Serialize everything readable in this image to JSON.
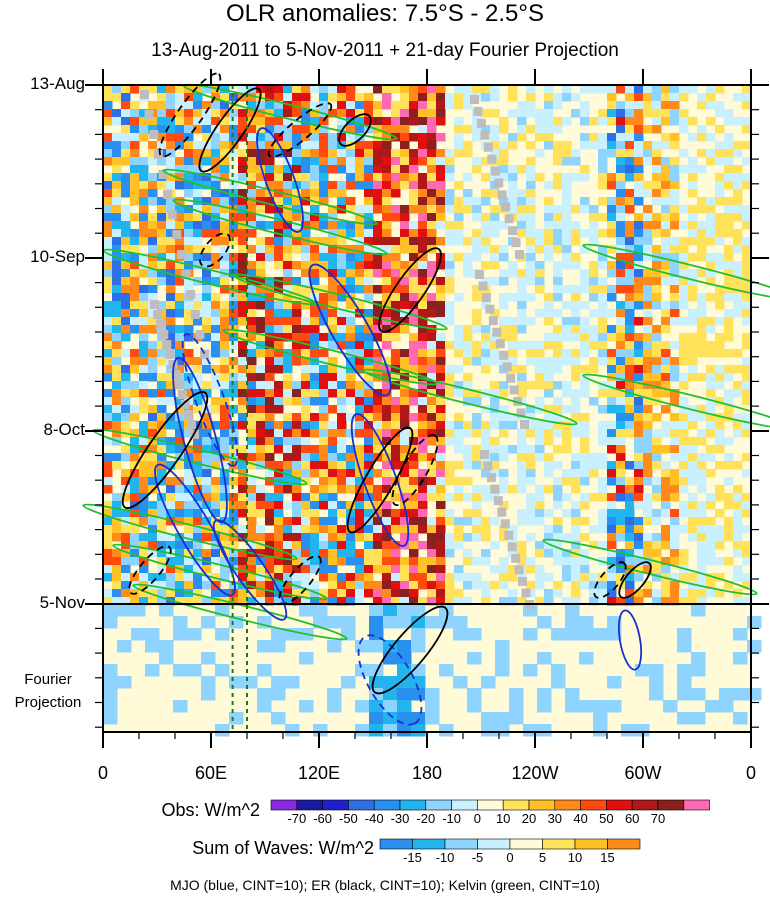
{
  "title": "OLR anomalies: 7.5°S - 2.5°S",
  "subtitle": "13-Aug-2011 to 5-Nov-2011 + 21-day Fourier Projection",
  "fourier_label": "Fourier Projection",
  "obs_colorbar": {
    "title": "Obs: W/m^2",
    "labels": [
      "-70",
      "-60",
      "-50",
      "-40",
      "-30",
      "-20",
      "-10",
      "0",
      "10",
      "20",
      "30",
      "40",
      "50",
      "60",
      "70"
    ],
    "colors": [
      "#8a2be2",
      "#1a1aa0",
      "#1f1fd0",
      "#2f6fe6",
      "#2a90f0",
      "#22b4ee",
      "#8fd3ff",
      "#c9f0ff",
      "#fffbd8",
      "#ffe25a",
      "#ffc125",
      "#ff8a1a",
      "#ff4a10",
      "#e01010",
      "#b01818",
      "#8b2020",
      "#ff69b4"
    ]
  },
  "waves_colorbar": {
    "title": "Sum of Waves: W/m^2",
    "labels": [
      "-15",
      "-10",
      "-5",
      "0",
      "5",
      "10",
      "15"
    ],
    "colors": [
      "#2a90f0",
      "#22b4ee",
      "#8fd3ff",
      "#c9f0ff",
      "#fffbd8",
      "#ffe25a",
      "#ffc125",
      "#ff8a1a"
    ]
  },
  "footer": "MJO (blue, CINT=10); ER (black, CINT=10); Kelvin (green, CINT=10)",
  "chart_data": {
    "type": "heatmap",
    "title": "OLR anomalies: 7.5°S - 2.5°S",
    "subtitle": "13-Aug-2011 to 5-Nov-2011 + 21-day Fourier Projection",
    "x_ticks": [
      "0",
      "60E",
      "120E",
      "180",
      "120W",
      "60W",
      "0"
    ],
    "x_range": [
      0,
      360
    ],
    "y_ticks": [
      "13-Aug",
      "10-Sep",
      "8-Oct",
      "5-Nov"
    ],
    "y_range": [
      "13-Aug-2011",
      "26-Nov-2011"
    ],
    "observed_end": "5-Nov-2011",
    "projection_days": 21,
    "contour_series": [
      {
        "name": "MJO",
        "color": "blue",
        "cint": 10
      },
      {
        "name": "ER",
        "color": "black",
        "cint": 10
      },
      {
        "name": "Kelvin",
        "color": "green",
        "cint": 10
      }
    ],
    "reference_longitudes": [
      72,
      80
    ]
  }
}
